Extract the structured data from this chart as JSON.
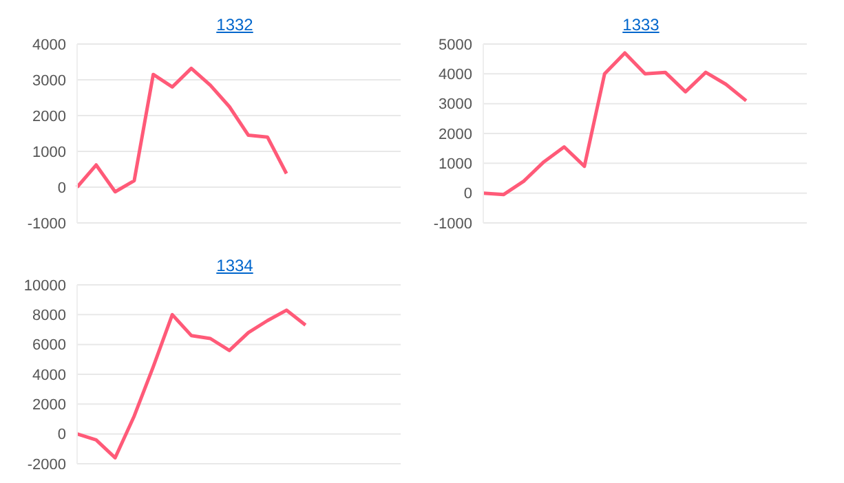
{
  "chart_data": [
    {
      "type": "line",
      "title": "1332",
      "categories": [
        null,
        null,
        null,
        null,
        null,
        null,
        null,
        null,
        null,
        null,
        null,
        null,
        null,
        null,
        null,
        null,
        null,
        null
      ],
      "series": [
        {
          "color": "#ff5a78",
          "values": [
            0,
            620,
            -130,
            180,
            3150,
            2800,
            3320,
            2850,
            2250,
            1450,
            1400,
            380,
            null,
            null,
            null,
            null,
            null,
            null
          ]
        }
      ],
      "ylim": [
        -1000,
        4000
      ],
      "yticks": [
        -1000,
        0,
        1000,
        2000,
        3000,
        4000
      ],
      "grid": "y",
      "marker": "none",
      "legend": false
    },
    {
      "type": "line",
      "title": "1333",
      "categories": [
        null,
        null,
        null,
        null,
        null,
        null,
        null,
        null,
        null,
        null,
        null,
        null,
        null,
        null,
        null,
        null,
        null
      ],
      "series": [
        {
          "color": "#ff5a78",
          "values": [
            0,
            -50,
            400,
            1050,
            1550,
            900,
            4000,
            4700,
            4000,
            4050,
            3400,
            4050,
            3650,
            3100,
            null,
            null,
            null
          ]
        }
      ],
      "ylim": [
        -1000,
        5000
      ],
      "yticks": [
        -1000,
        0,
        1000,
        2000,
        3000,
        4000,
        5000
      ],
      "grid": "y",
      "marker": "none",
      "legend": false
    },
    {
      "type": "line",
      "title": "1334",
      "categories": [
        null,
        null,
        null,
        null,
        null,
        null,
        null,
        null,
        null,
        null,
        null,
        null,
        null,
        null,
        null,
        null,
        null,
        null
      ],
      "series": [
        {
          "color": "#ff5a78",
          "values": [
            0,
            -400,
            -1600,
            1200,
            4500,
            8000,
            6600,
            6400,
            5600,
            6800,
            7600,
            8300,
            7300,
            null,
            null,
            null,
            null,
            null
          ]
        }
      ],
      "ylim": [
        -2000,
        10000
      ],
      "yticks": [
        -2000,
        0,
        2000,
        4000,
        6000,
        8000,
        10000
      ],
      "grid": "y",
      "marker": "none",
      "legend": false
    }
  ]
}
